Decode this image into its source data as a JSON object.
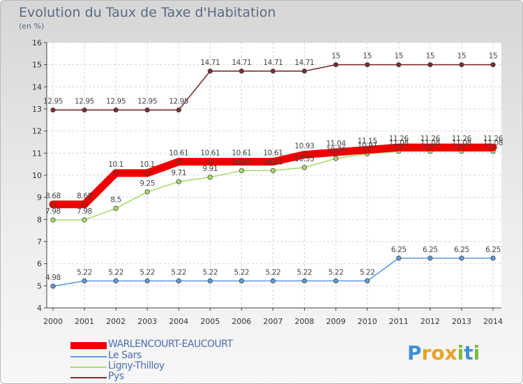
{
  "title": "Evolution du Taux de Taxe d'Habitation",
  "subtitle": "(en %)",
  "brand": {
    "text": "Proxiti",
    "letters": [
      "P",
      "r",
      "o",
      "x",
      "i",
      "t",
      "i"
    ],
    "letter_colors": [
      "#3f8fd2",
      "#e8a224",
      "#e8a224",
      "#e8a224",
      "#7bbd3c",
      "#3f8fd2",
      "#7bbd3c"
    ]
  },
  "chart_data": {
    "type": "line",
    "categories": [
      "2000",
      "2001",
      "2002",
      "2003",
      "2004",
      "2005",
      "2006",
      "2007",
      "2008",
      "2009",
      "2010",
      "2011",
      "2012",
      "2013",
      "2014"
    ],
    "ylim": [
      4,
      16
    ],
    "yticks": [
      "4",
      "5",
      "6",
      "7",
      "8",
      "9",
      "10",
      "11",
      "12",
      "13",
      "14",
      "15",
      "16"
    ],
    "grid": true,
    "legend_position": "bottom-left",
    "series": [
      {
        "name": "WARLENCOURT-EAUCOURT",
        "color": "#ee0000",
        "highlight": true,
        "values": [
          8.68,
          8.68,
          10.1,
          10.1,
          10.61,
          10.61,
          10.61,
          10.61,
          10.93,
          11.04,
          11.15,
          11.26,
          11.26,
          11.26,
          11.26
        ],
        "labels": [
          "8.68",
          "8.68",
          "10.1",
          "10.1",
          "10.61",
          "10.61",
          "10.61",
          "10.61",
          "10.93",
          "11.04",
          "11.15",
          "11.26",
          "11.26",
          "11.26",
          "11.26"
        ]
      },
      {
        "name": "Le Sars",
        "color": "#5b9bd5",
        "values": [
          4.98,
          5.22,
          5.22,
          5.22,
          5.22,
          5.22,
          5.22,
          5.22,
          5.22,
          5.22,
          5.22,
          6.25,
          6.25,
          6.25,
          6.25
        ],
        "labels": [
          "4.98",
          "5.22",
          "5.22",
          "5.22",
          "5.22",
          "5.22",
          "5.22",
          "5.22",
          "5.22",
          "5.22",
          "5.22",
          "6.25",
          "6.25",
          "6.25",
          "6.25"
        ]
      },
      {
        "name": "Ligny-Thilloy",
        "color": "#a8dc6c",
        "values": [
          7.98,
          7.98,
          8.5,
          9.25,
          9.71,
          9.91,
          10.21,
          10.21,
          10.35,
          10.76,
          10.97,
          11.08,
          11.08,
          11.08,
          11.08
        ],
        "labels": [
          "7.98",
          "7.98",
          "8.5",
          "9.25",
          "9.71",
          "9.91",
          "10.21",
          "10.21",
          "10.35",
          "10.76",
          "10.97",
          "11.08",
          "11.08",
          "11.08",
          "11.08"
        ]
      },
      {
        "name": "Pys",
        "color": "#7b2f2f",
        "values": [
          12.95,
          12.95,
          12.95,
          12.95,
          12.95,
          14.71,
          14.71,
          14.71,
          14.71,
          15,
          15,
          15,
          15,
          15,
          15
        ],
        "labels": [
          "12.95",
          "12.95",
          "12.95",
          "12.95",
          "12.95",
          "14.71",
          "14.71",
          "14.71",
          "14.71",
          "15",
          "15",
          "15",
          "15",
          "15",
          "15"
        ]
      }
    ]
  }
}
